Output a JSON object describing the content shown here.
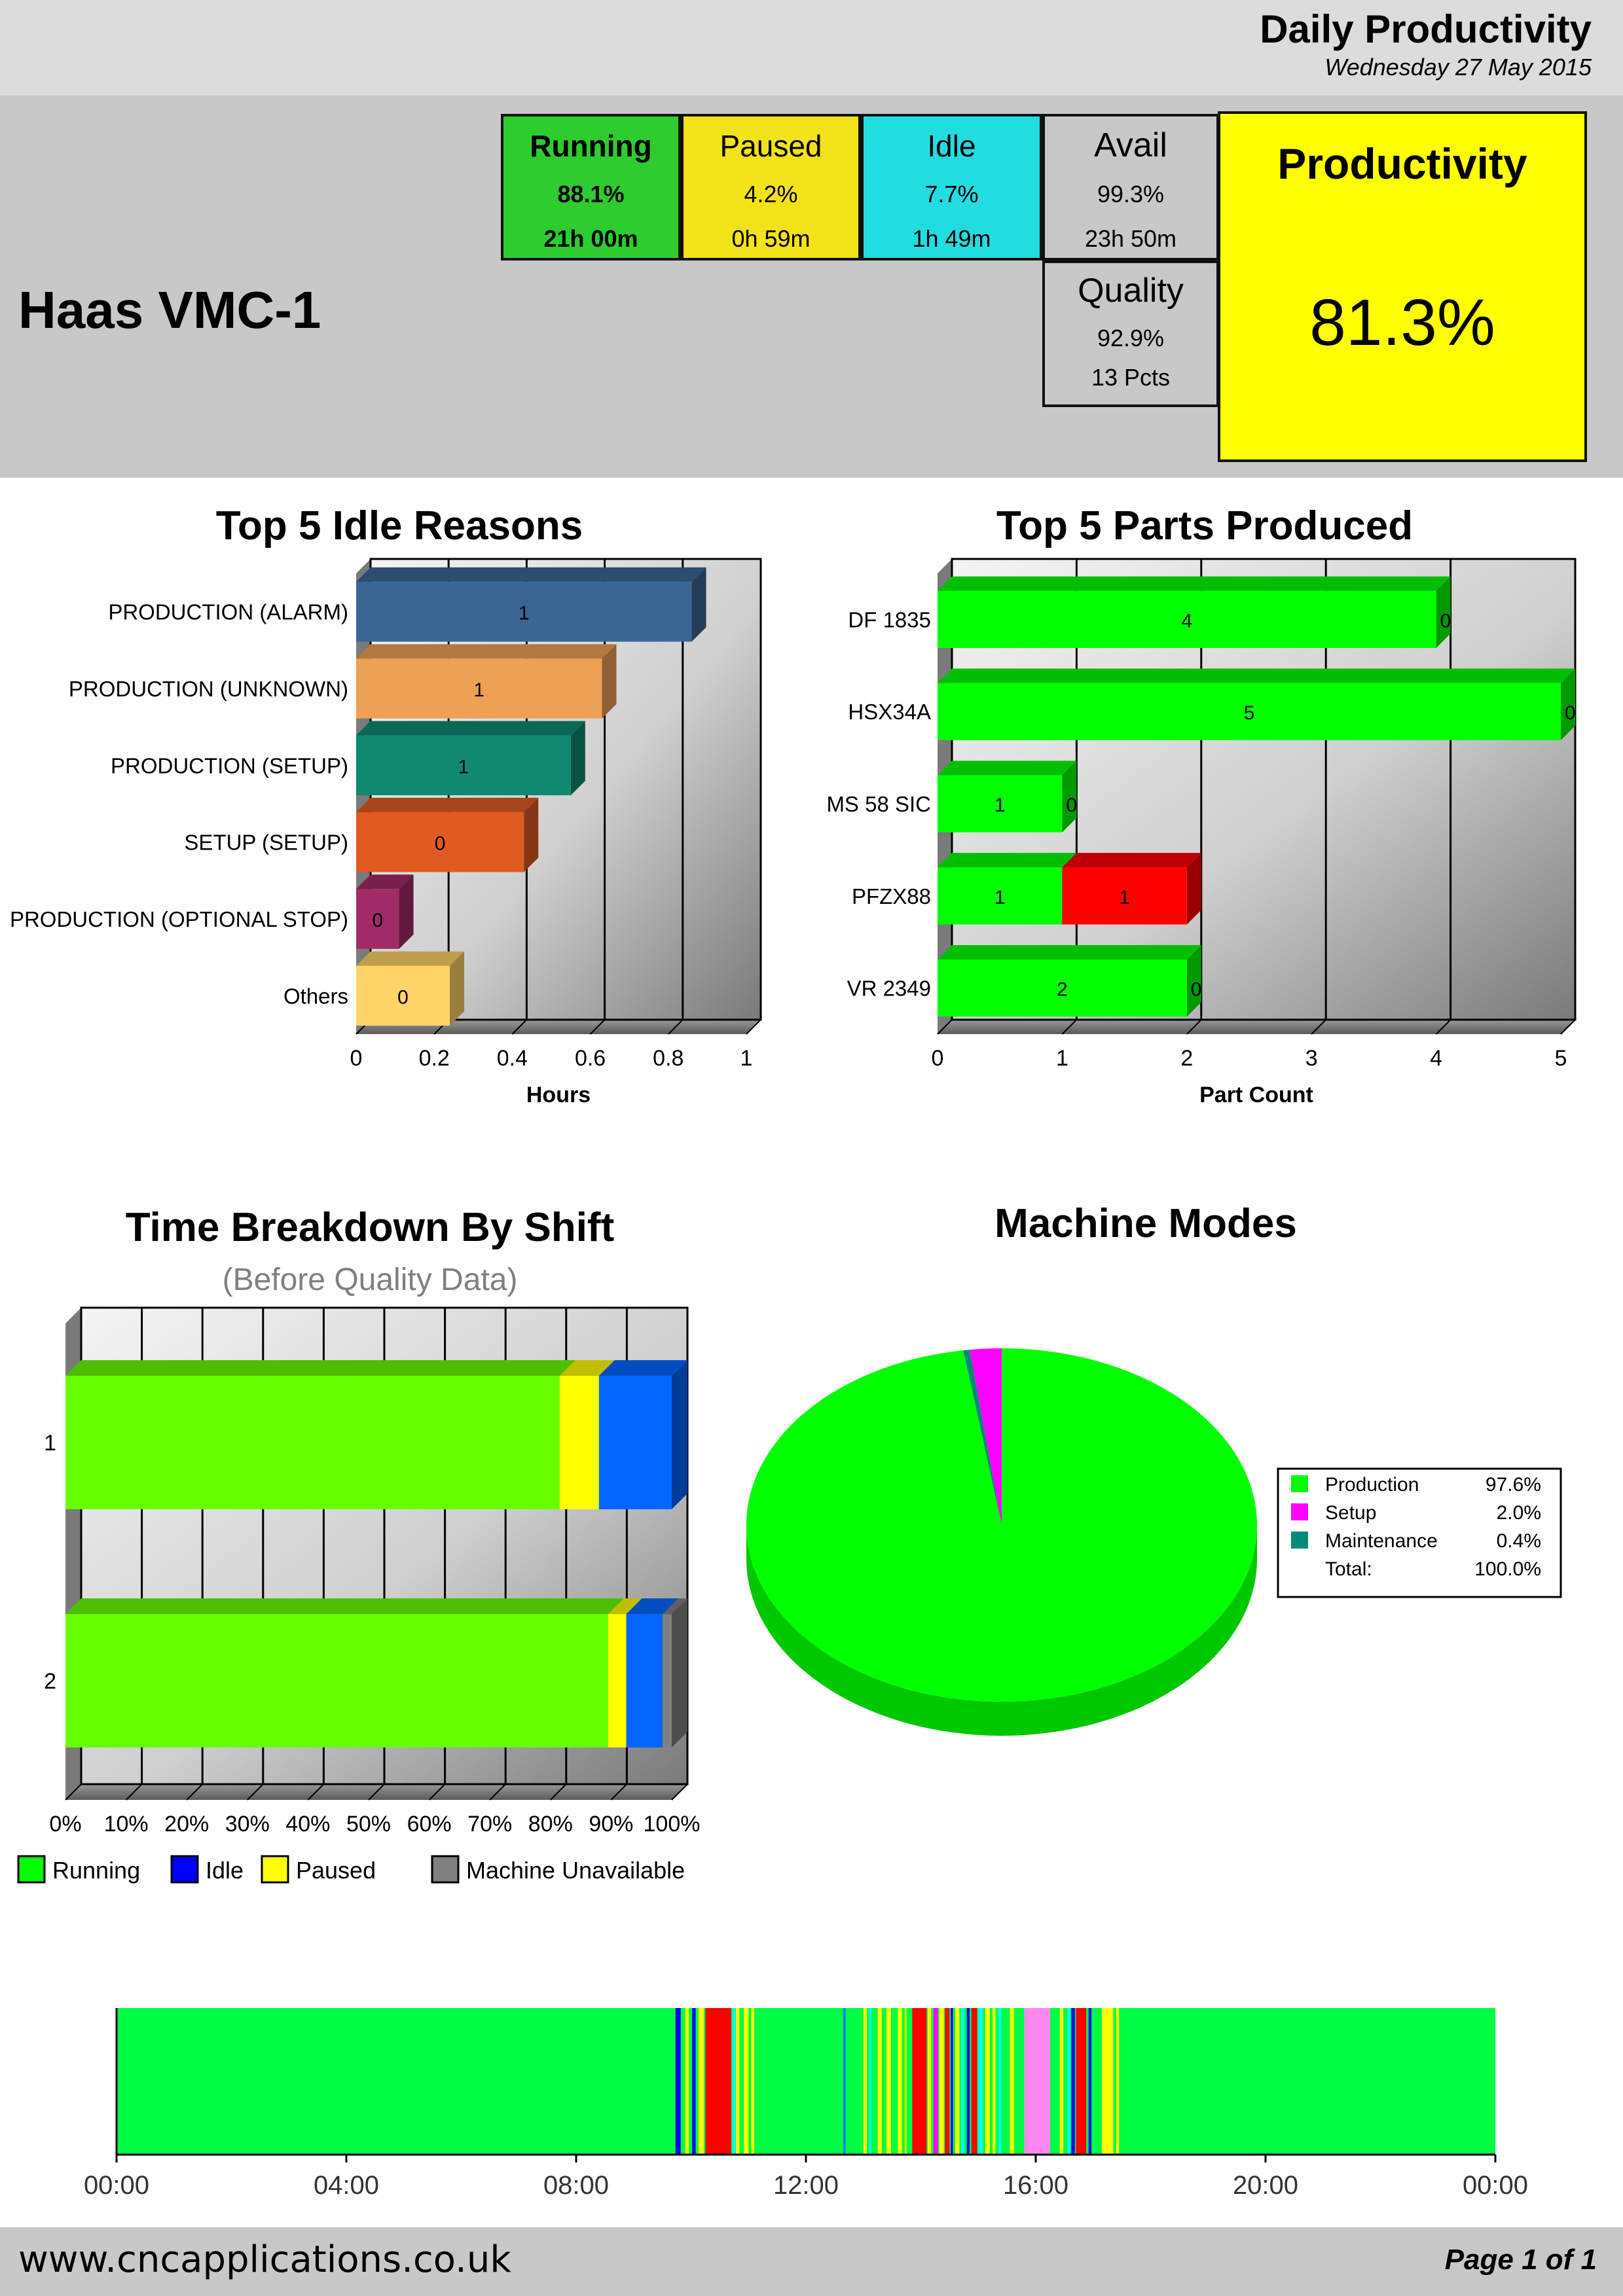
{
  "report": {
    "title": "Daily Productivity",
    "date": "Wednesday 27 May 2015"
  },
  "machine": {
    "name": "Haas VMC-1"
  },
  "stats": {
    "running": {
      "label": "Running",
      "pct": "88.1%",
      "duration": "21h 00m",
      "color": "#2ecc2e"
    },
    "paused": {
      "label": "Paused",
      "pct": "4.2%",
      "duration": "0h 59m",
      "color": "#f2e21a"
    },
    "idle": {
      "label": "Idle",
      "pct": "7.7%",
      "duration": "1h 49m",
      "color": "#22dde0"
    },
    "avail": {
      "label": "Avail",
      "pct": "99.3%",
      "duration": "23h 50m",
      "color": "#c8c8c8"
    },
    "quality": {
      "label": "Quality",
      "pct": "92.9%",
      "detail": "13 Pcts",
      "color": "#c8c8c8"
    },
    "productivity": {
      "label": "Productivity",
      "value": "81.3%",
      "color": "#ffff00"
    }
  },
  "chart_data": [
    {
      "type": "bar",
      "orientation": "horizontal",
      "title": "Top 5 Idle Reasons",
      "xlabel": "Hours",
      "ylabel": "",
      "xlim": [
        0,
        1
      ],
      "x_ticks": [
        "0",
        "0.2",
        "0.4",
        "0.6",
        "0.8",
        "1"
      ],
      "categories": [
        "PRODUCTION (ALARM)",
        "PRODUCTION (UNKNOWN)",
        "PRODUCTION (SETUP)",
        "SETUP (SETUP)",
        "PRODUCTION (OPTIONAL STOP)",
        "Others"
      ],
      "values": [
        0.86,
        0.63,
        0.55,
        0.43,
        0.11,
        0.24
      ],
      "data_labels": [
        "1",
        "1",
        "1",
        "0",
        "0",
        "0"
      ],
      "colors": [
        "#3a6694",
        "#eea055",
        "#0f8a70",
        "#e05a22",
        "#a12b66",
        "#ffd468"
      ]
    },
    {
      "type": "bar",
      "orientation": "horizontal",
      "stacked": true,
      "title": "Top 5 Parts Produced",
      "xlabel": "Part Count",
      "ylabel": "",
      "xlim": [
        0,
        5
      ],
      "x_ticks": [
        "0",
        "1",
        "2",
        "3",
        "4",
        "5"
      ],
      "categories": [
        "DF 1835",
        "HSX34A",
        "MS 58 SIC",
        "PFZX88",
        "VR 2349"
      ],
      "series": [
        {
          "values": [
            4,
            5,
            1,
            1,
            2
          ],
          "labels": [
            "4",
            "5",
            "1",
            "1",
            "2"
          ],
          "color": "#00ff00"
        },
        {
          "values": [
            0,
            0,
            0,
            1,
            0
          ],
          "labels": [
            "0",
            "0",
            "0",
            "1",
            "0"
          ],
          "color": "#ff0000"
        }
      ]
    },
    {
      "type": "bar",
      "orientation": "horizontal",
      "stacked": true,
      "title": "Time Breakdown By Shift",
      "subtitle": "(Before Quality Data)",
      "xlim": [
        0,
        100
      ],
      "x_ticks": [
        "0%",
        "10%",
        "20%",
        "30%",
        "40%",
        "50%",
        "60%",
        "70%",
        "80%",
        "90%",
        "100%"
      ],
      "categories": [
        "1",
        "2"
      ],
      "series": [
        {
          "name": "Running",
          "values": [
            81.5,
            89.5
          ],
          "color": "#66ff00"
        },
        {
          "name": "Idle",
          "values": [
            12,
            6
          ],
          "color": "#0066ff"
        },
        {
          "name": "Paused",
          "values": [
            6.5,
            3
          ],
          "color": "#ffff00"
        },
        {
          "name": "Machine Unavailable",
          "values": [
            0,
            1.5
          ],
          "color": "#808080"
        }
      ],
      "legend": {
        "position": "bottom",
        "items": [
          {
            "name": "Running",
            "color": "#00ff00"
          },
          {
            "name": "Idle",
            "color": "#0000ff"
          },
          {
            "name": "Paused",
            "color": "#ffff00"
          },
          {
            "name": "Machine Unavailable",
            "color": "#808080"
          }
        ]
      }
    },
    {
      "type": "pie",
      "title": "Machine Modes",
      "slices": [
        {
          "name": "Production",
          "value": 97.6,
          "label": "97.6%",
          "color": "#00ff00"
        },
        {
          "name": "Setup",
          "value": 2.0,
          "label": "2.0%",
          "color": "#ff00ff"
        },
        {
          "name": "Maintenance",
          "value": 0.4,
          "label": "0.4%",
          "color": "#008b76"
        }
      ],
      "total": {
        "name": "Total:",
        "label": "100.0%"
      },
      "legend": {
        "position": "right"
      }
    },
    {
      "type": "timeline",
      "xlim": [
        "00:00",
        "24:00"
      ],
      "x_ticks": [
        "00:00",
        "04:00",
        "08:00",
        "12:00",
        "16:00",
        "20:00",
        "00:00"
      ],
      "base_color": "#00ff44",
      "segments": [
        {
          "start": 9.73,
          "end": 9.82,
          "color": "#0000ff"
        },
        {
          "start": 9.9,
          "end": 9.96,
          "color": "#ffff00"
        },
        {
          "start": 10.02,
          "end": 10.08,
          "color": "#0000ff"
        },
        {
          "start": 10.13,
          "end": 10.22,
          "color": "#ffff00"
        },
        {
          "start": 10.25,
          "end": 10.7,
          "color": "#ff0000"
        },
        {
          "start": 10.72,
          "end": 10.77,
          "color": "#00ffff"
        },
        {
          "start": 10.78,
          "end": 10.84,
          "color": "#ffff00"
        },
        {
          "start": 10.92,
          "end": 11.0,
          "color": "#ffff00"
        },
        {
          "start": 11.05,
          "end": 11.1,
          "color": "#ffff00"
        },
        {
          "start": 12.65,
          "end": 12.69,
          "color": "#0077ff"
        },
        {
          "start": 13.0,
          "end": 13.06,
          "color": "#ffff00"
        },
        {
          "start": 13.1,
          "end": 13.14,
          "color": "#00ffff"
        },
        {
          "start": 13.25,
          "end": 13.32,
          "color": "#ffff00"
        },
        {
          "start": 13.4,
          "end": 13.48,
          "color": "#ffff00"
        },
        {
          "start": 13.6,
          "end": 13.67,
          "color": "#ffff00"
        },
        {
          "start": 13.72,
          "end": 13.75,
          "color": "#ffff00"
        },
        {
          "start": 13.85,
          "end": 14.1,
          "color": "#ff0000"
        },
        {
          "start": 14.12,
          "end": 14.18,
          "color": "#ffff00"
        },
        {
          "start": 14.22,
          "end": 14.3,
          "color": "#ff00ff"
        },
        {
          "start": 14.32,
          "end": 14.4,
          "color": "#ffff00"
        },
        {
          "start": 14.42,
          "end": 14.5,
          "color": "#ff0000"
        },
        {
          "start": 14.52,
          "end": 14.56,
          "color": "#0000ff"
        },
        {
          "start": 14.6,
          "end": 14.67,
          "color": "#ffff00"
        },
        {
          "start": 14.7,
          "end": 14.75,
          "color": "#00ffff"
        },
        {
          "start": 14.8,
          "end": 14.85,
          "color": "#0000ff"
        },
        {
          "start": 14.88,
          "end": 14.98,
          "color": "#ff0000"
        },
        {
          "start": 15.0,
          "end": 15.08,
          "color": "#00ffff"
        },
        {
          "start": 15.12,
          "end": 15.2,
          "color": "#ffff00"
        },
        {
          "start": 15.25,
          "end": 15.3,
          "color": "#ffff00"
        },
        {
          "start": 15.35,
          "end": 15.4,
          "color": "#00ffff"
        },
        {
          "start": 15.55,
          "end": 15.62,
          "color": "#ffff00"
        },
        {
          "start": 15.8,
          "end": 16.25,
          "color": "#ff88ee"
        },
        {
          "start": 16.42,
          "end": 16.48,
          "color": "#ffff00"
        },
        {
          "start": 16.55,
          "end": 16.6,
          "color": "#00ffff"
        },
        {
          "start": 16.62,
          "end": 16.68,
          "color": "#0000ff"
        },
        {
          "start": 16.7,
          "end": 16.88,
          "color": "#ff0000"
        },
        {
          "start": 16.92,
          "end": 16.97,
          "color": "#0000ff"
        },
        {
          "start": 17.15,
          "end": 17.35,
          "color": "#ffff00"
        },
        {
          "start": 17.4,
          "end": 17.45,
          "color": "#ffff00"
        }
      ]
    }
  ],
  "footer": {
    "url": "www.cncapplications.co.uk",
    "page": "Page 1 of 1"
  }
}
